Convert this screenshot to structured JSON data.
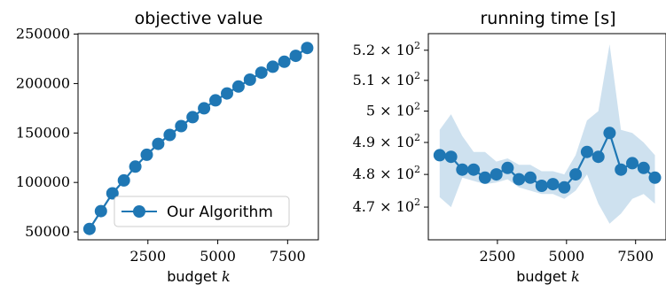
{
  "chart_data": [
    {
      "type": "line",
      "title": "objective value",
      "xlabel": "budget k",
      "ylabel": "",
      "xlim": [
        0,
        8600
      ],
      "ylim": [
        42000,
        250500
      ],
      "xticks": [
        2500,
        5000,
        7500
      ],
      "xtick_labels": [
        "2500",
        "5000",
        "7500"
      ],
      "yticks": [
        50000,
        100000,
        150000,
        200000,
        250000
      ],
      "ytick_labels": [
        "50000",
        "100000",
        "150000",
        "200000",
        "250000"
      ],
      "grid": false,
      "legend": {
        "placement": "lower-right",
        "entries": [
          "Our Algorithm"
        ]
      },
      "series": [
        {
          "name": "Our Algorithm",
          "color": "#1f77b4",
          "x": [
            410,
            820,
            1230,
            1640,
            2050,
            2460,
            2870,
            3280,
            3690,
            4100,
            4510,
            4920,
            5330,
            5740,
            6150,
            6560,
            6970,
            7380,
            7790,
            8200
          ],
          "y": [
            53000,
            71000,
            89000,
            102000,
            116000,
            128000,
            139000,
            148000,
            157000,
            166000,
            175000,
            183000,
            190000,
            197000,
            204000,
            211000,
            217000,
            222000,
            228000,
            236000
          ]
        }
      ]
    },
    {
      "type": "line",
      "title": "running time [s]",
      "xlabel": "budget k",
      "ylabel": "",
      "xlim": [
        0,
        8600
      ],
      "ylim": [
        460.2,
        525.6
      ],
      "yscale": "log",
      "xticks": [
        2500,
        5000,
        7500
      ],
      "xtick_labels": [
        "2500",
        "5000",
        "7500"
      ],
      "yticks": [
        470,
        480,
        490,
        500,
        510,
        520
      ],
      "ytick_mantissas": [
        "4.7",
        "4.8",
        "4.9",
        "5",
        "5.1",
        "5.2"
      ],
      "ytick_base": "10",
      "ytick_exp": "2",
      "grid": false,
      "series": [
        {
          "color": "#1f77b4",
          "band_color": "#1f77b4",
          "x": [
            410,
            820,
            1230,
            1640,
            2050,
            2460,
            2870,
            3280,
            3690,
            4100,
            4510,
            4920,
            5330,
            5740,
            6150,
            6560,
            6970,
            7380,
            7790,
            8200
          ],
          "y": [
            486,
            485.5,
            481.5,
            481.5,
            479,
            480,
            482,
            478.5,
            479,
            476.5,
            477,
            476,
            480,
            487,
            485.5,
            493,
            481.5,
            483.5,
            482,
            479
          ],
          "y_low": [
            473,
            470,
            479,
            478,
            477,
            477.5,
            478.5,
            476,
            475,
            474,
            474,
            472.5,
            475,
            480,
            471,
            465,
            468,
            472.5,
            474,
            471
          ],
          "y_high": [
            494,
            499,
            492,
            487,
            487,
            484,
            485,
            483,
            483,
            481,
            481,
            480,
            486,
            497,
            500,
            522,
            494,
            493,
            490,
            486
          ]
        }
      ]
    }
  ]
}
